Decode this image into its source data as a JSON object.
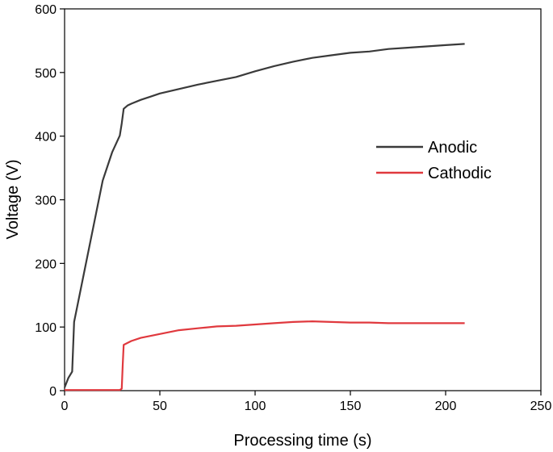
{
  "chart_data": {
    "type": "line",
    "xlabel": "Processing time (s)",
    "ylabel": "Voltage (V)",
    "xlim": [
      0,
      250
    ],
    "ylim": [
      0,
      600
    ],
    "xticks": [
      0,
      50,
      100,
      150,
      200,
      250
    ],
    "yticks": [
      0,
      100,
      200,
      300,
      400,
      500,
      600
    ],
    "grid": false,
    "legend_position": "center-right",
    "series": [
      {
        "name": "Anodic",
        "color": "#3a3a3a",
        "x": [
          0,
          2,
          4,
          5,
          10,
          15,
          20,
          25,
          29,
          30,
          31,
          33,
          35,
          40,
          45,
          50,
          60,
          70,
          80,
          90,
          100,
          110,
          120,
          130,
          140,
          150,
          160,
          170,
          180,
          190,
          200,
          210
        ],
        "y": [
          5,
          20,
          30,
          108,
          182,
          256,
          330,
          375,
          401,
          420,
          443,
          448,
          451,
          457,
          462,
          467,
          474,
          481,
          487,
          493,
          502,
          510,
          517,
          523,
          527,
          531,
          533,
          537,
          539,
          541,
          543,
          545
        ]
      },
      {
        "name": "Cathodic",
        "color": "#e0393e",
        "x": [
          0,
          5,
          10,
          20,
          29,
          30,
          30.5,
          31,
          33,
          35,
          40,
          45,
          50,
          60,
          70,
          80,
          90,
          100,
          110,
          120,
          130,
          140,
          150,
          160,
          170,
          180,
          190,
          200,
          210
        ],
        "y": [
          1,
          1,
          1,
          1,
          1,
          3,
          40,
          72,
          75,
          78,
          83,
          86,
          89,
          95,
          98,
          101,
          102,
          104,
          106,
          108,
          109,
          108,
          107,
          107,
          106,
          106,
          106,
          106,
          106
        ]
      }
    ]
  }
}
